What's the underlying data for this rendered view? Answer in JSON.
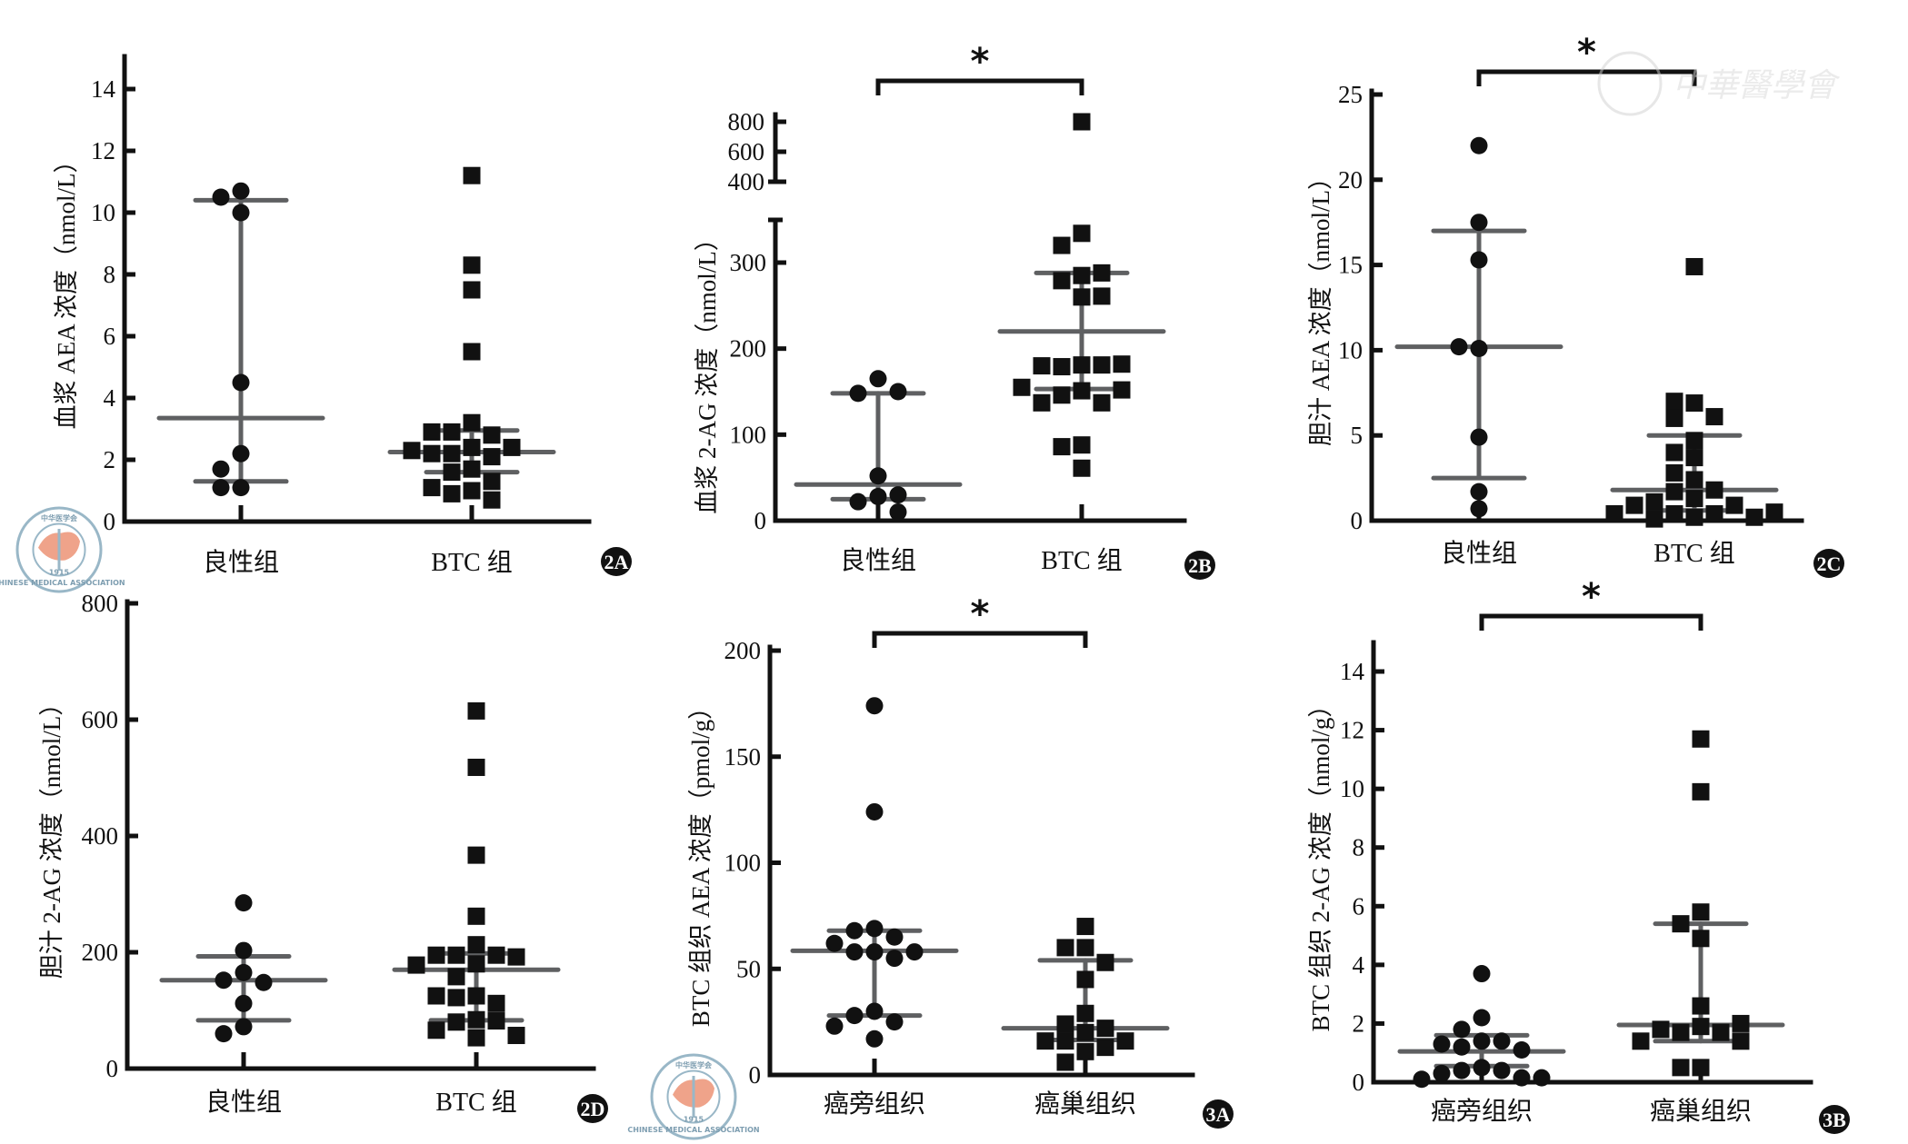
{
  "watermark": {
    "text": "中華醫學會",
    "logo": {
      "top": "中华医学会",
      "bottom": "CHINESE MEDICAL ASSOCIATION",
      "year": "1915"
    }
  },
  "chart_data": [
    {
      "id": "2A",
      "type": "scatter",
      "badge": "2A",
      "ylabel": "血浆 AEA 浓度（nmol/L）",
      "categories": [
        "良性组",
        "BTC 组"
      ],
      "yticks": [
        0,
        2,
        4,
        6,
        8,
        10,
        12,
        14
      ],
      "ylim": [
        0,
        15
      ],
      "significance": null,
      "series": [
        {
          "name": "良性组",
          "marker": "circle",
          "values": [
            10.7,
            10.5,
            10.0,
            4.5,
            2.2,
            1.7,
            1.1,
            1.1
          ],
          "summary": {
            "center": 3.35,
            "lower": 1.3,
            "upper": 10.4
          }
        },
        {
          "name": "BTC 组",
          "marker": "square",
          "values": [
            11.2,
            8.3,
            7.5,
            5.5,
            3.2,
            2.9,
            2.8,
            2.9,
            2.4,
            2.4,
            2.2,
            2.1,
            2.2,
            2.3,
            1.7,
            1.6,
            1.3,
            1.0,
            0.9,
            0.7,
            1.1
          ],
          "summary": {
            "center": 2.25,
            "lower": 1.6,
            "upper": 2.95
          }
        }
      ]
    },
    {
      "id": "2B",
      "type": "scatter",
      "badge": "2B",
      "ylabel": "血浆 2-AG 浓度（nmol/L）",
      "categories": [
        "良性组",
        "BTC 组"
      ],
      "yticks": [
        0,
        100,
        200,
        300
      ],
      "ylim": [
        0,
        350
      ],
      "broken_axis": {
        "upper_ticks": [
          400,
          600,
          800
        ],
        "upper_range": [
          400,
          800
        ]
      },
      "significance": {
        "from": 0,
        "to": 1,
        "label": "*"
      },
      "series": [
        {
          "name": "良性组",
          "marker": "circle",
          "values": [
            165,
            148,
            150,
            52,
            28,
            22,
            30,
            10
          ],
          "summary": {
            "center": 42,
            "lower": 25,
            "upper": 148
          }
        },
        {
          "name": "BTC 组",
          "marker": "square",
          "values": [
            800,
            334,
            320,
            285,
            279,
            288,
            260,
            261,
            181,
            179,
            181,
            180,
            182,
            151,
            146,
            137,
            137,
            152,
            155,
            88,
            86,
            61
          ],
          "summary": {
            "center": 220,
            "lower": 153,
            "upper": 288
          }
        }
      ]
    },
    {
      "id": "2C",
      "type": "scatter",
      "badge": "2C",
      "ylabel": "胆汁 AEA 浓度（nmol/L）",
      "categories": [
        "良性组",
        "BTC 组"
      ],
      "yticks": [
        0,
        5,
        10,
        15,
        20,
        25
      ],
      "ylim": [
        0,
        25
      ],
      "significance": {
        "from": 0,
        "to": 1,
        "label": "*"
      },
      "series": [
        {
          "name": "良性组",
          "marker": "circle",
          "values": [
            22,
            17.5,
            15.3,
            10.1,
            10.2,
            4.9,
            1.7,
            0.7
          ],
          "summary": {
            "center": 10.2,
            "lower": 2.5,
            "upper": 17.0
          }
        },
        {
          "name": "BTC 组",
          "marker": "square",
          "values": [
            14.9,
            6.9,
            7.0,
            6.0,
            6.1,
            4.7,
            4.0,
            3.7,
            2.8,
            2.4,
            1.7,
            1.8,
            1.3,
            1.1,
            0.9,
            0.9,
            0.4,
            0.4,
            0.2,
            0.1,
            0.2,
            0.4,
            0.5
          ],
          "summary": {
            "center": 1.8,
            "lower": 0.6,
            "upper": 5.0
          }
        }
      ]
    },
    {
      "id": "2D",
      "type": "scatter",
      "badge": "2D",
      "ylabel": "胆汁 2-AG 浓度（nmol/L）",
      "categories": [
        "良性组",
        "BTC 组"
      ],
      "yticks": [
        0,
        200,
        400,
        600,
        800
      ],
      "ylim": [
        0,
        800
      ],
      "significance": null,
      "series": [
        {
          "name": "良性组",
          "marker": "circle",
          "values": [
            285,
            203,
            165,
            152,
            148,
            112,
            72,
            60
          ],
          "summary": {
            "center": 152,
            "lower": 83,
            "upper": 193
          }
        },
        {
          "name": "BTC 组",
          "marker": "square",
          "values": [
            615,
            518,
            367,
            262,
            213,
            195,
            195,
            195,
            192,
            180,
            178,
            158,
            125,
            122,
            112,
            125,
            84,
            80,
            82,
            66,
            57,
            53
          ],
          "summary": {
            "center": 170,
            "lower": 83,
            "upper": 198
          }
        }
      ]
    },
    {
      "id": "3A",
      "type": "scatter",
      "badge": "3A",
      "ylabel": "BTC 组织 AEA 浓度（pmol/g）",
      "categories": [
        "癌旁组织",
        "癌巢组织"
      ],
      "yticks": [
        0,
        50,
        100,
        150,
        200
      ],
      "ylim": [
        0,
        200
      ],
      "significance": {
        "from": 0,
        "to": 1,
        "label": "*"
      },
      "series": [
        {
          "name": "癌旁组织",
          "marker": "circle",
          "values": [
            174,
            124,
            69,
            68,
            65,
            62,
            58,
            58,
            58,
            55,
            30,
            28,
            25,
            23,
            17
          ],
          "summary": {
            "center": 58.5,
            "lower": 28,
            "upper": 68
          }
        },
        {
          "name": "癌巢组织",
          "marker": "square",
          "values": [
            70,
            60,
            60,
            53,
            45,
            29,
            24,
            20,
            22,
            16,
            16,
            16,
            13,
            11,
            6
          ],
          "summary": {
            "center": 22,
            "lower": 16.5,
            "upper": 54
          }
        }
      ]
    },
    {
      "id": "3B",
      "type": "scatter",
      "badge": "3B",
      "ylabel": "BTC 组织 2-AG 浓度（nmol/g）",
      "categories": [
        "癌旁组织",
        "癌巢组织"
      ],
      "yticks": [
        0,
        2,
        4,
        6,
        8,
        10,
        12,
        14
      ],
      "ylim": [
        0,
        15
      ],
      "significance": {
        "from": 0,
        "to": 1,
        "label": "*"
      },
      "series": [
        {
          "name": "癌旁组织",
          "marker": "circle",
          "values": [
            3.7,
            2.2,
            1.8,
            1.4,
            1.4,
            1.3,
            1.2,
            1.1,
            0.5,
            0.4,
            0.4,
            0.3,
            0.15,
            0.1,
            0.15
          ],
          "summary": {
            "center": 1.05,
            "lower": 0.55,
            "upper": 1.6
          }
        },
        {
          "name": "癌巢组织",
          "marker": "square",
          "values": [
            11.7,
            9.9,
            5.8,
            5.4,
            4.9,
            2.6,
            1.9,
            1.7,
            1.7,
            1.8,
            2.0,
            1.4,
            1.4,
            0.5,
            0.5
          ],
          "summary": {
            "center": 1.95,
            "lower": 1.4,
            "upper": 5.4
          }
        }
      ]
    }
  ]
}
